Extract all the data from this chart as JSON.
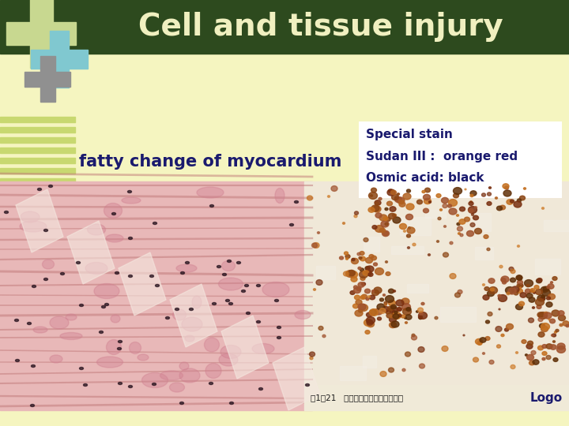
{
  "title": "Cell and tissue injury",
  "title_bg_color": "#2d4a1e",
  "title_text_color": "#f0f0c0",
  "body_bg_color": "#f5f5c0",
  "subtitle_text": "fatty change of myocardium",
  "subtitle_color": "#1a1a6e",
  "info_box_text": [
    "Special stain",
    "Sudan III :  orange red",
    "Osmic acid: black"
  ],
  "info_box_color": "#1a1a6e",
  "info_box_bg": "#ffffff",
  "logo_text": "Logo",
  "logo_color": "#1a1a6e",
  "cross_colors": [
    "#c8d890",
    "#80c8d0",
    "#909090"
  ],
  "stripe_color": "#c8d870",
  "caption_text": "图1－21   心肌脂肪变性（钾酸染色）",
  "caption_bg": "#f0ead8"
}
